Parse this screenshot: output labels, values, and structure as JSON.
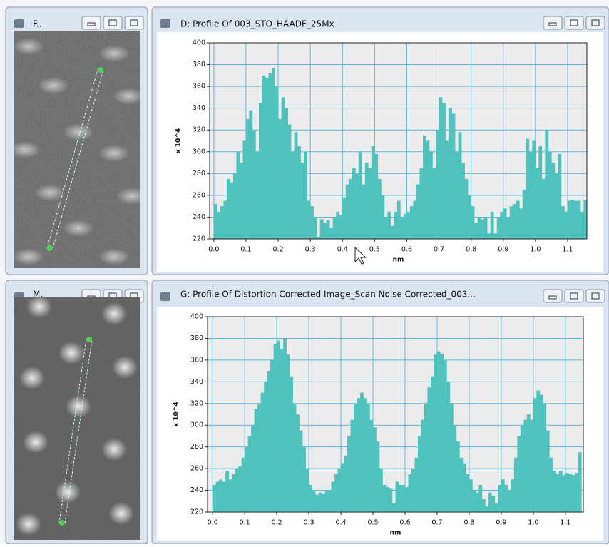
{
  "windows": [
    {
      "title": "F.."
    },
    {
      "title": "M."
    }
  ],
  "chart_data": [
    {
      "type": "bar",
      "title": "D: Profile Of 003_STO_HAADF_25Mx",
      "x_label": "nm",
      "y_label": "x 10^4",
      "color": "#4fc2bd",
      "grid": true,
      "xlim": [
        -0.013,
        1.16
      ],
      "ylim": [
        220,
        400
      ],
      "xticks": [
        {
          "value": 0,
          "label": "0.0"
        },
        0.1,
        0.2,
        0.3,
        0.4,
        0.5,
        0.6,
        0.7,
        0.8,
        0.9,
        {
          "value": 1,
          "label": "1.0"
        },
        1.1
      ],
      "yticks": [
        220,
        240,
        260,
        280,
        300,
        320,
        340,
        360,
        380,
        400
      ],
      "x": [
        0,
        0.01,
        0.02,
        0.03,
        0.04,
        0.05,
        0.06,
        0.07,
        0.08,
        0.09,
        0.1,
        0.11,
        0.12,
        0.13,
        0.14,
        0.15,
        0.16,
        0.17,
        0.18,
        0.19,
        0.2,
        0.21,
        0.22,
        0.23,
        0.24,
        0.25,
        0.26,
        0.27,
        0.28,
        0.29,
        0.3,
        0.31,
        0.32,
        0.33,
        0.34,
        0.35,
        0.36,
        0.37,
        0.38,
        0.39,
        0.4,
        0.41,
        0.42,
        0.43,
        0.44,
        0.45,
        0.46,
        0.47,
        0.48,
        0.49,
        0.5,
        0.51,
        0.52,
        0.53,
        0.54,
        0.55,
        0.56,
        0.57,
        0.58,
        0.59,
        0.6,
        0.61,
        0.62,
        0.63,
        0.64,
        0.65,
        0.66,
        0.67,
        0.68,
        0.69,
        0.7,
        0.71,
        0.72,
        0.73,
        0.74,
        0.75,
        0.76,
        0.77,
        0.78,
        0.79,
        0.8,
        0.81,
        0.82,
        0.83,
        0.84,
        0.85,
        0.86,
        0.87,
        0.88,
        0.89,
        0.9,
        0.91,
        0.92,
        0.93,
        0.94,
        0.95,
        0.96,
        0.97,
        0.98,
        0.99,
        1,
        1.01,
        1.02,
        1.03,
        1.04,
        1.05,
        1.06,
        1.07,
        1.08,
        1.09,
        1.1,
        1.11,
        1.12,
        1.13,
        1.14,
        1.15
      ],
      "values": [
        252,
        245,
        250,
        255,
        275,
        272,
        280,
        300,
        290,
        310,
        330,
        338,
        320,
        300,
        345,
        370,
        368,
        372,
        377,
        360,
        330,
        350,
        340,
        325,
        300,
        318,
        305,
        290,
        300,
        255,
        250,
        240,
        222,
        238,
        235,
        237,
        230,
        240,
        245,
        242,
        258,
        270,
        275,
        285,
        280,
        300,
        270,
        290,
        285,
        305,
        298,
        275,
        260,
        240,
        245,
        232,
        245,
        255,
        240,
        243,
        245,
        250,
        255,
        270,
        285,
        315,
        310,
        300,
        285,
        320,
        350,
        345,
        310,
        340,
        335,
        300,
        318,
        290,
        275,
        260,
        250,
        235,
        240,
        238,
        240,
        225,
        245,
        225,
        240,
        245,
        248,
        240,
        250,
        252,
        255,
        248,
        265,
        312,
        300,
        310,
        285,
        305,
        275,
        320,
        300,
        290,
        280,
        298,
        250,
        245,
        255,
        256,
        255,
        255,
        245,
        256
      ]
    },
    {
      "type": "bar",
      "title": "G: Profile Of Distortion Corrected Image_Scan Noise Corrected_003...",
      "x_label": "nm",
      "y_label": "x 10^4",
      "color": "#4fc2bd",
      "grid": true,
      "xlim": [
        -0.016,
        1.156
      ],
      "ylim": [
        220,
        400
      ],
      "xticks": [
        {
          "value": 0,
          "label": "0.0"
        },
        0.1,
        0.2,
        0.3,
        0.4,
        0.5,
        0.6,
        0.7,
        0.8,
        0.9,
        {
          "value": 1,
          "label": "1.0"
        },
        1.1
      ],
      "yticks": [
        220,
        240,
        260,
        280,
        300,
        320,
        340,
        360,
        380,
        400
      ],
      "x": [
        0,
        0.01,
        0.02,
        0.03,
        0.04,
        0.05,
        0.06,
        0.07,
        0.08,
        0.09,
        0.1,
        0.11,
        0.12,
        0.13,
        0.14,
        0.15,
        0.16,
        0.17,
        0.18,
        0.19,
        0.2,
        0.21,
        0.22,
        0.23,
        0.24,
        0.25,
        0.26,
        0.27,
        0.28,
        0.29,
        0.3,
        0.31,
        0.32,
        0.33,
        0.34,
        0.35,
        0.36,
        0.37,
        0.38,
        0.39,
        0.4,
        0.41,
        0.42,
        0.43,
        0.44,
        0.45,
        0.46,
        0.47,
        0.48,
        0.49,
        0.5,
        0.51,
        0.52,
        0.53,
        0.54,
        0.55,
        0.56,
        0.57,
        0.58,
        0.59,
        0.6,
        0.61,
        0.62,
        0.63,
        0.64,
        0.65,
        0.66,
        0.67,
        0.68,
        0.69,
        0.7,
        0.71,
        0.72,
        0.73,
        0.74,
        0.75,
        0.76,
        0.77,
        0.78,
        0.79,
        0.8,
        0.81,
        0.82,
        0.83,
        0.84,
        0.85,
        0.86,
        0.87,
        0.88,
        0.89,
        0.9,
        0.91,
        0.92,
        0.93,
        0.94,
        0.95,
        0.96,
        0.97,
        0.98,
        0.99,
        1,
        1.01,
        1.02,
        1.03,
        1.04,
        1.05,
        1.06,
        1.07,
        1.08,
        1.09,
        1.1,
        1.11,
        1.12,
        1.13,
        1.14
      ],
      "values": [
        245,
        248,
        250,
        248,
        258,
        250,
        255,
        260,
        262,
        270,
        280,
        290,
        300,
        315,
        320,
        330,
        340,
        350,
        360,
        375,
        378,
        370,
        380,
        365,
        345,
        320,
        310,
        295,
        280,
        260,
        245,
        240,
        236,
        238,
        237,
        240,
        240,
        248,
        255,
        260,
        265,
        272,
        290,
        305,
        320,
        325,
        330,
        325,
        320,
        305,
        298,
        285,
        260,
        245,
        243,
        242,
        228,
        248,
        245,
        245,
        243,
        255,
        260,
        270,
        290,
        305,
        320,
        335,
        345,
        365,
        368,
        366,
        360,
        340,
        320,
        300,
        285,
        270,
        265,
        255,
        250,
        240,
        238,
        245,
        232,
        225,
        238,
        235,
        228,
        245,
        250,
        245,
        240,
        250,
        270,
        290,
        300,
        305,
        310,
        305,
        325,
        332,
        328,
        320,
        295,
        270,
        258,
        255,
        258,
        254,
        256,
        255,
        254,
        256,
        275
      ]
    }
  ]
}
